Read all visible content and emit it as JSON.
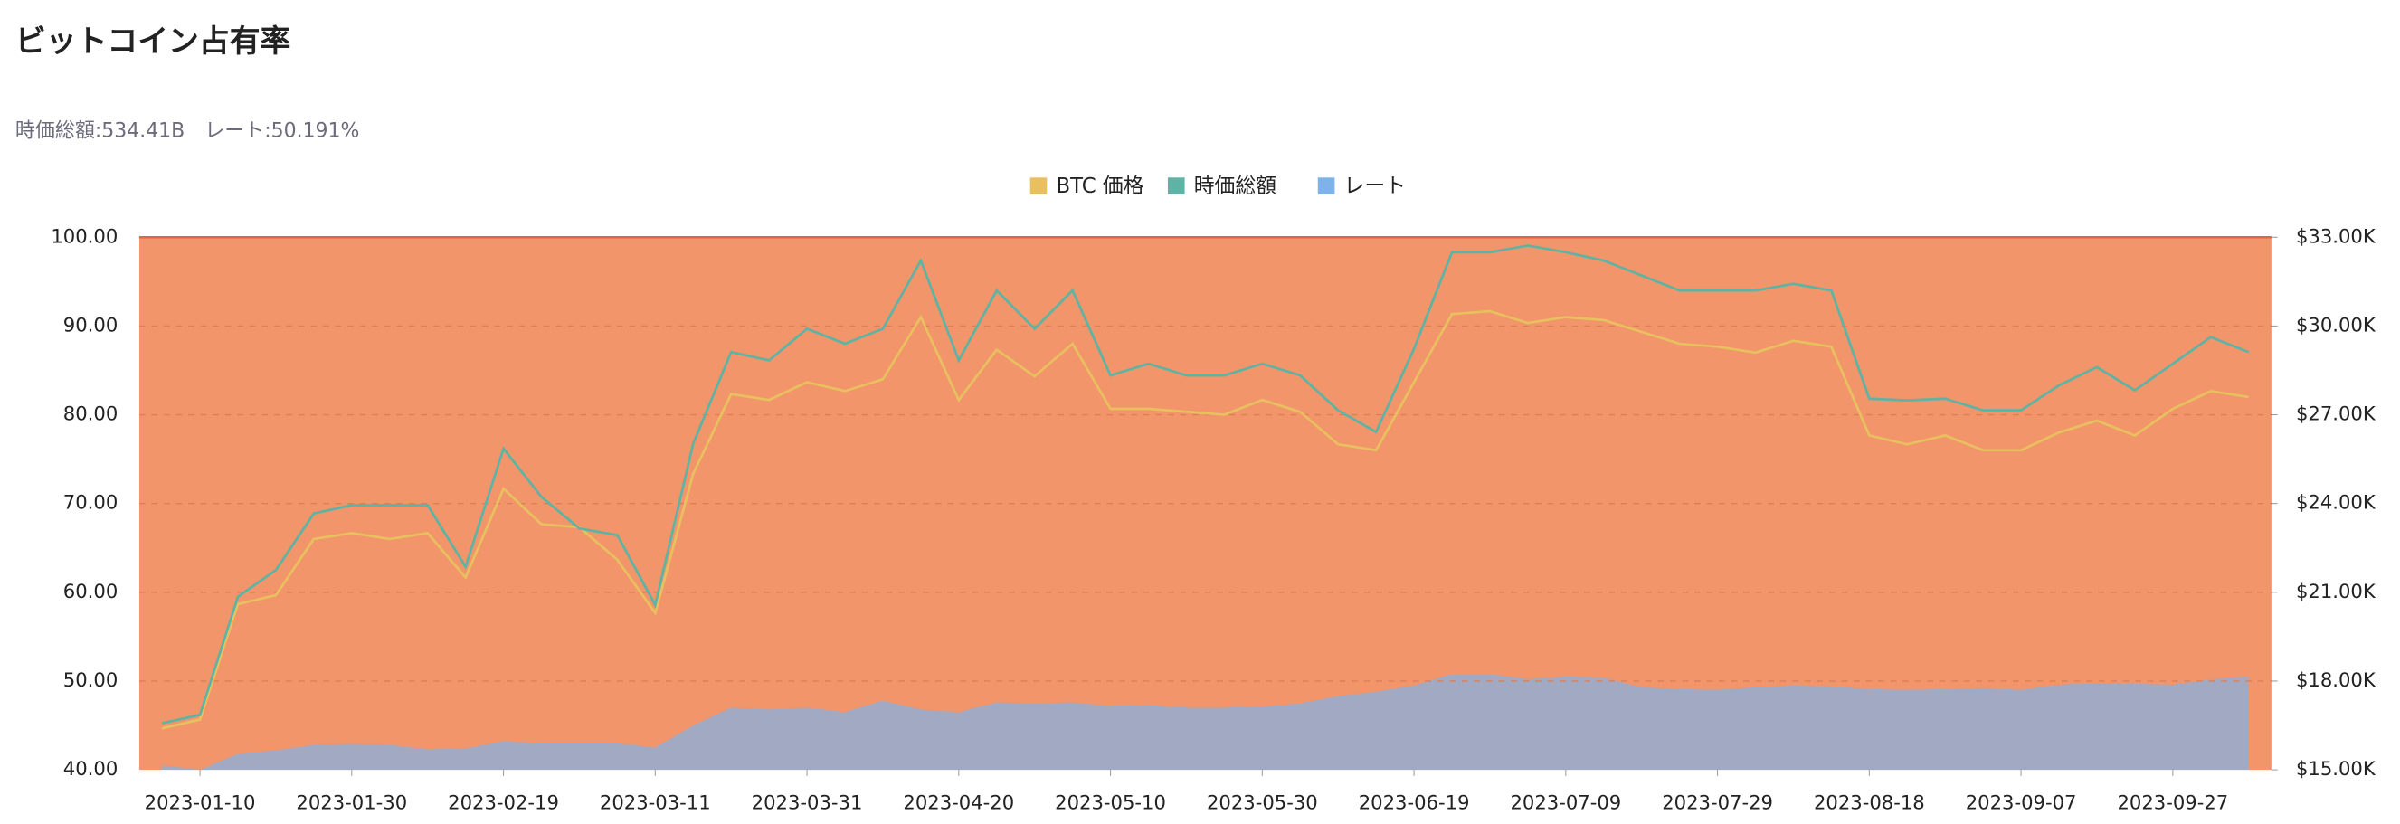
{
  "chart_data": {
    "type": "line",
    "title": "ビットコイン占有率",
    "subtitle": "時価総額:534.41B　レート:50.191%",
    "x": [
      "2023-01-05",
      "2023-01-10",
      "2023-01-15",
      "2023-01-20",
      "2023-01-25",
      "2023-01-30",
      "2023-02-04",
      "2023-02-09",
      "2023-02-14",
      "2023-02-19",
      "2023-02-24",
      "2023-03-01",
      "2023-03-06",
      "2023-03-11",
      "2023-03-16",
      "2023-03-21",
      "2023-03-26",
      "2023-03-31",
      "2023-04-05",
      "2023-04-10",
      "2023-04-15",
      "2023-04-20",
      "2023-04-25",
      "2023-04-30",
      "2023-05-05",
      "2023-05-10",
      "2023-05-15",
      "2023-05-20",
      "2023-05-25",
      "2023-05-30",
      "2023-06-04",
      "2023-06-09",
      "2023-06-14",
      "2023-06-19",
      "2023-06-24",
      "2023-06-29",
      "2023-07-04",
      "2023-07-09",
      "2023-07-14",
      "2023-07-19",
      "2023-07-24",
      "2023-07-29",
      "2023-08-03",
      "2023-08-08",
      "2023-08-13",
      "2023-08-18",
      "2023-08-23",
      "2023-08-28",
      "2023-09-02",
      "2023-09-07",
      "2023-09-12",
      "2023-09-17",
      "2023-09-22",
      "2023-09-27",
      "2023-10-02",
      "2023-10-07"
    ],
    "xlim": [
      "2023-01-02",
      "2023-10-10"
    ],
    "xticks": [
      "2023-01-10",
      "2023-01-30",
      "2023-02-19",
      "2023-03-11",
      "2023-03-31",
      "2023-04-20",
      "2023-05-10",
      "2023-05-30",
      "2023-06-19",
      "2023-07-09",
      "2023-07-29",
      "2023-08-18",
      "2023-09-07",
      "2023-09-27"
    ],
    "ylim": [
      40,
      100
    ],
    "yticks": [
      {
        "value": 40,
        "label": "40.00"
      },
      {
        "value": 50,
        "label": "50.00"
      },
      {
        "value": 60,
        "label": "60.00"
      },
      {
        "value": 70,
        "label": "70.00"
      },
      {
        "value": 80,
        "label": "80.00"
      },
      {
        "value": 90,
        "label": "90.00"
      },
      {
        "value": 100,
        "label": "100.00"
      }
    ],
    "y2lim": [
      15000,
      33000
    ],
    "y2ticks": [
      {
        "value": 15000,
        "label": "$15.00K"
      },
      {
        "value": 18000,
        "label": "$18.00K"
      },
      {
        "value": 21000,
        "label": "$21.00K"
      },
      {
        "value": 24000,
        "label": "$24.00K"
      },
      {
        "value": 27000,
        "label": "$27.00K"
      },
      {
        "value": 30000,
        "label": "$30.00K"
      },
      {
        "value": 33000,
        "label": "$33.00K"
      }
    ],
    "y3lim": [
      290,
      610
    ],
    "grid": true,
    "background_color": "#f2956a",
    "series": [
      {
        "name": "BTC 価格",
        "color": "#e9c05f",
        "axis": "y2",
        "kind": "line",
        "values": [
          16400,
          16700,
          20600,
          20900,
          22800,
          23000,
          22800,
          23000,
          21500,
          24500,
          23300,
          23200,
          22100,
          20300,
          25000,
          27700,
          27500,
          28100,
          27800,
          28200,
          30300,
          27500,
          29200,
          28300,
          29400,
          27200,
          27200,
          27100,
          27000,
          27500,
          27100,
          26000,
          25800,
          28100,
          30400,
          30500,
          30100,
          30300,
          30200,
          29800,
          29400,
          29300,
          29100,
          29500,
          29300,
          26300,
          26000,
          26300,
          25800,
          25800,
          26400,
          26800,
          26300,
          27200,
          27800,
          27600
        ]
      },
      {
        "name": "時価総額",
        "color": "#5db3a4",
        "axis": "y3",
        "kind": "line",
        "values": [
          318,
          323,
          394,
          410,
          444,
          449,
          449,
          449,
          412,
          483,
          454,
          435,
          431,
          389,
          486,
          541,
          536,
          555,
          546,
          555,
          596,
          536,
          578,
          555,
          578,
          527,
          534,
          527,
          527,
          534,
          527,
          506,
          493,
          543,
          601,
          601,
          605,
          601,
          596,
          587,
          578,
          578,
          578,
          582,
          578,
          513,
          512,
          513,
          506,
          506,
          521,
          532,
          518,
          534,
          550,
          541
        ]
      },
      {
        "name": "レート",
        "color": "#7fb2e9",
        "axis": "y",
        "kind": "area",
        "values": [
          40.5,
          40.0,
          41.8,
          42.2,
          42.8,
          42.9,
          42.8,
          42.3,
          42.4,
          43.2,
          43.0,
          43.0,
          43.0,
          42.5,
          45.0,
          47.0,
          46.8,
          47.0,
          46.5,
          47.8,
          46.8,
          46.5,
          47.6,
          47.5,
          47.6,
          47.2,
          47.3,
          47.0,
          47.0,
          47.1,
          47.5,
          48.3,
          48.8,
          49.5,
          50.8,
          50.8,
          50.2,
          50.5,
          50.4,
          49.3,
          49.1,
          49.0,
          49.3,
          49.5,
          49.4,
          49.1,
          49.0,
          49.1,
          49.2,
          49.0,
          49.6,
          49.8,
          49.7,
          49.6,
          50.2,
          50.5
        ]
      }
    ]
  }
}
